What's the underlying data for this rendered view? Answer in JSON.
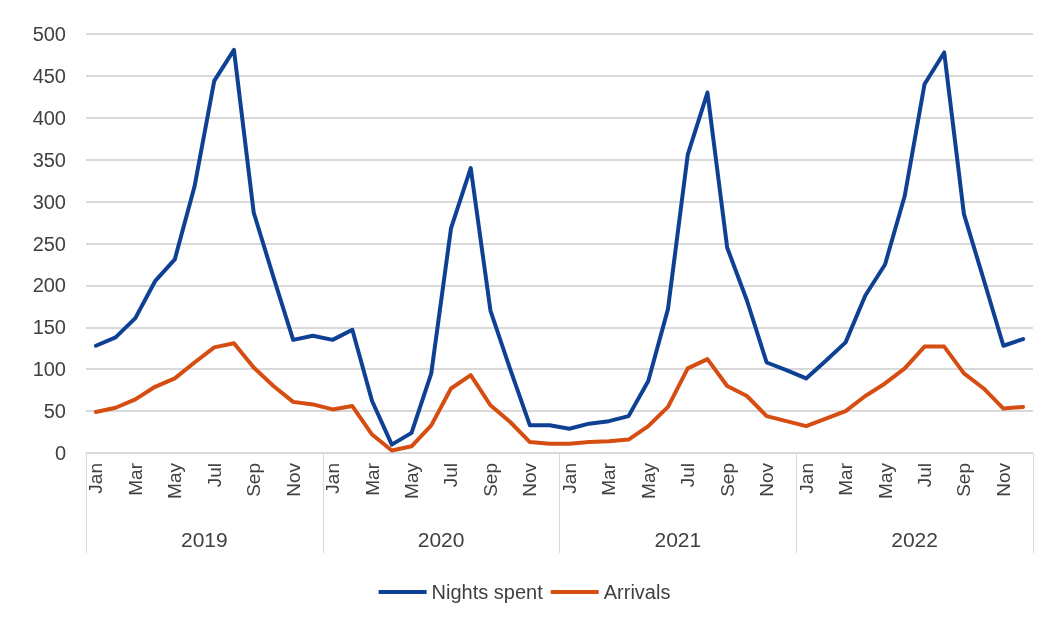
{
  "chart_data": {
    "type": "line",
    "categories": [
      "Jan",
      null,
      "Mar",
      null,
      "May",
      null,
      "Jul",
      null,
      "Sep",
      null,
      "Nov",
      null,
      "Jan",
      null,
      "Mar",
      null,
      "May",
      null,
      "Jul",
      null,
      "Sep",
      null,
      "Nov",
      null,
      "Jan",
      null,
      "Mar",
      null,
      "May",
      null,
      "Jul",
      null,
      "Sep",
      null,
      "Nov",
      null,
      "Jan",
      null,
      "Mar",
      null,
      "May",
      null,
      "Jul",
      null,
      "Sep",
      null,
      "Nov",
      null
    ],
    "series": [
      {
        "name": "Nights spent",
        "color": "#0e4194",
        "values": [
          128,
          138,
          161,
          205,
          231,
          318,
          444,
          481,
          287,
          210,
          135,
          140,
          135,
          147,
          62,
          10,
          24,
          95,
          268,
          340,
          170,
          100,
          33,
          33,
          29,
          35,
          38,
          44,
          86,
          172,
          356,
          430,
          245,
          182,
          108,
          99,
          89,
          110,
          132,
          188,
          225,
          307,
          440,
          478,
          285,
          207,
          128,
          136
        ]
      },
      {
        "name": "Arrivals",
        "color": "#d64d12",
        "values": [
          49,
          54,
          64,
          79,
          89,
          108,
          126,
          131,
          102,
          80,
          61,
          58,
          52,
          56,
          22,
          3,
          8,
          33,
          77,
          93,
          57,
          37,
          13,
          11,
          11,
          13,
          14,
          16,
          32,
          55,
          101,
          112,
          80,
          68,
          44,
          38,
          32,
          41,
          50,
          68,
          83,
          101,
          127,
          127,
          95,
          77,
          53,
          55
        ]
      }
    ],
    "annotations": [
      "2019",
      "2020",
      "2021",
      "2022"
    ],
    "ylim": [
      0,
      500
    ],
    "yticks": [
      0,
      50,
      100,
      150,
      200,
      250,
      300,
      350,
      400,
      450,
      500
    ],
    "grid": "y",
    "legend": "bottom",
    "marker": "none",
    "line_style": "solid"
  }
}
